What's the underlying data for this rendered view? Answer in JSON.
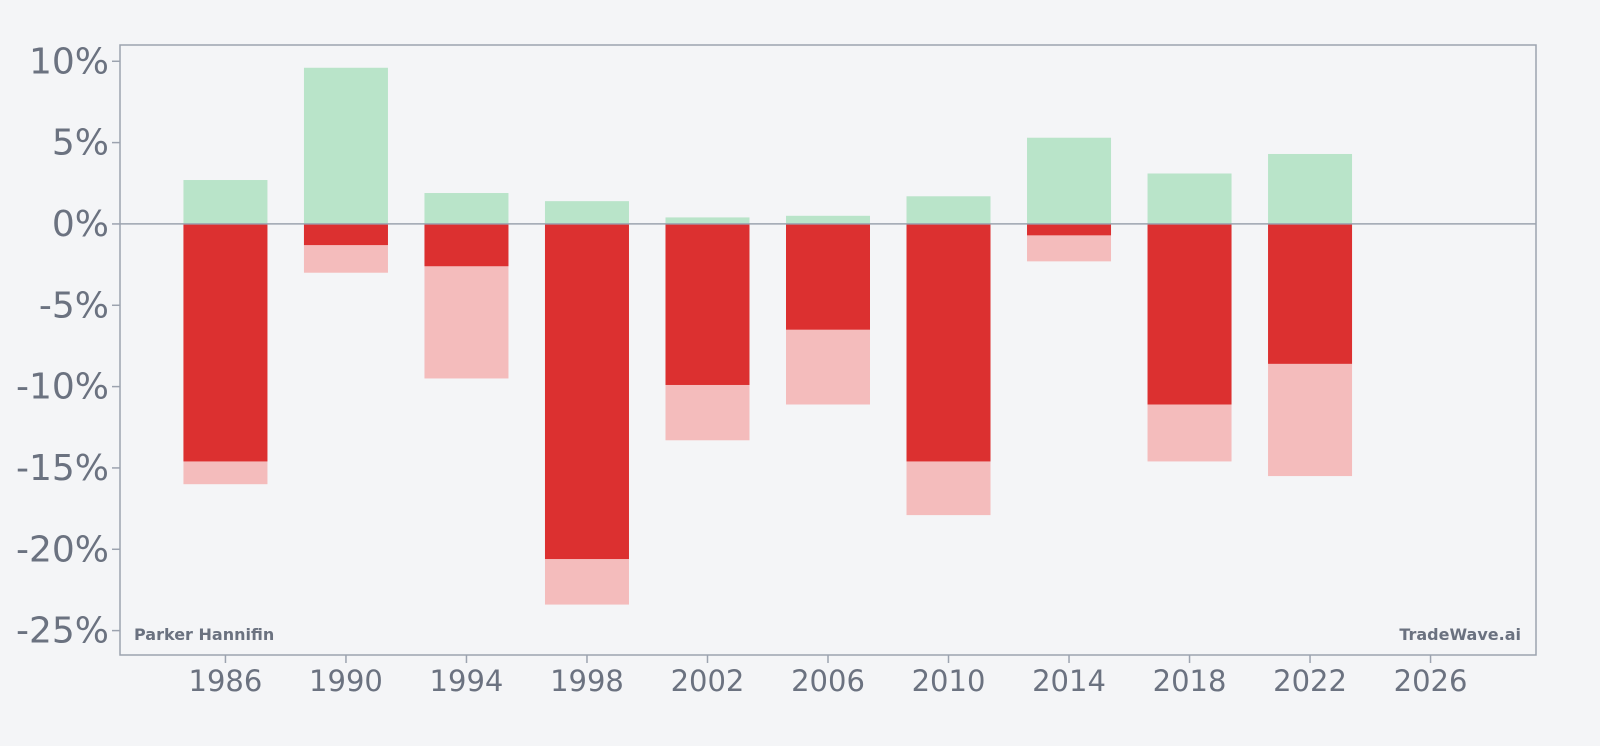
{
  "chart_data": {
    "type": "bar",
    "stacked_overlay": true,
    "x": [
      1986,
      1990,
      1994,
      1998,
      2002,
      2006,
      2010,
      2014,
      2018,
      2022
    ],
    "series": [
      {
        "values": [
          2.7,
          9.6,
          1.9,
          1.4,
          0.4,
          0.5,
          1.7,
          5.3,
          3.1,
          4.3
        ]
      },
      {
        "values": [
          -14.6,
          -1.3,
          -2.6,
          -20.6,
          -9.9,
          -6.5,
          -14.6,
          -0.7,
          -11.1,
          -8.6
        ]
      },
      {
        "values": [
          -16.0,
          -3.0,
          -9.5,
          -23.4,
          -13.3,
          -11.1,
          -17.9,
          -2.3,
          -14.6,
          -15.5
        ]
      }
    ],
    "xlim": [
      1982.5,
      2029.5
    ],
    "ylim": [
      -26.5,
      11.0
    ],
    "yticks": [
      10,
      5,
      0,
      -5,
      -10,
      -15,
      -20,
      -25
    ],
    "ytick_labels": [
      "10%",
      "5%",
      "0%",
      "-5%",
      "-10%",
      "-15%",
      "-20%",
      "-25%"
    ],
    "xticks": [
      1986,
      1990,
      1994,
      1998,
      2002,
      2006,
      2010,
      2014,
      2018,
      2022,
      2026
    ],
    "xtick_labels": [
      "1986",
      "1990",
      "1994",
      "1998",
      "2002",
      "2006",
      "2010",
      "2014",
      "2018",
      "2022",
      "2026"
    ],
    "colors": {
      "positive": "#b9e4c9",
      "negative": "#dc3030",
      "negative_extended": "#f4bcbc",
      "axis": "#9ca3af",
      "zero_line": "#9ca3af",
      "tick_text": "#6b7280",
      "background": "#f4f5f7"
    },
    "grid": false,
    "legend": "none"
  },
  "watermark": {
    "left": "Parker Hannifin",
    "right": "TradeWave.ai"
  }
}
